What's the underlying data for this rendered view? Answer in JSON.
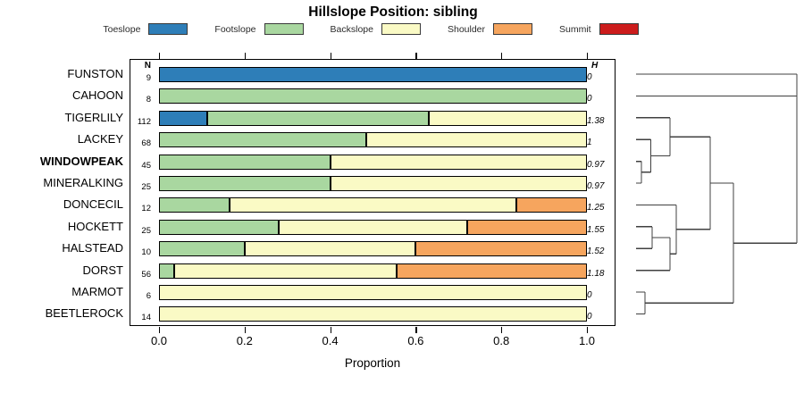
{
  "chart_data": {
    "type": "bar",
    "stacked": true,
    "orientation": "horizontal",
    "title": "Hillslope Position: sibling",
    "xlabel": "Proportion",
    "xlim": [
      0,
      1
    ],
    "x_ticks": [
      0,
      0.2,
      0.4,
      0.6,
      0.8,
      1.0
    ],
    "x_tick_labels": [
      "0.0",
      "0.2",
      "0.4",
      "0.6",
      "0.8",
      "1.0"
    ],
    "legend_position": "top",
    "categories": [
      "Toeslope",
      "Footslope",
      "Backslope",
      "Shoulder",
      "Summit"
    ],
    "colors": {
      "Toeslope": "#2E7EB8",
      "Footslope": "#A9D7A0",
      "Backslope": "#FAFAC5",
      "Shoulder": "#F6A55E",
      "Summit": "#CC1C1C"
    },
    "columns": {
      "n_header": "N",
      "h_header": "H"
    },
    "rows": [
      {
        "label": "FUNSTON",
        "n": "9",
        "h": "0",
        "bold": false,
        "segments": [
          {
            "cat": "Toeslope",
            "value": 1.0
          }
        ]
      },
      {
        "label": "CAHOON",
        "n": "8",
        "h": "0",
        "bold": false,
        "segments": [
          {
            "cat": "Footslope",
            "value": 1.0
          }
        ]
      },
      {
        "label": "TIGERLILY",
        "n": "112",
        "h": "1.38",
        "bold": false,
        "segments": [
          {
            "cat": "Toeslope",
            "value": 0.112
          },
          {
            "cat": "Footslope",
            "value": 0.518
          },
          {
            "cat": "Backslope",
            "value": 0.37
          }
        ]
      },
      {
        "label": "LACKEY",
        "n": "68",
        "h": "1",
        "bold": false,
        "segments": [
          {
            "cat": "Footslope",
            "value": 0.485
          },
          {
            "cat": "Backslope",
            "value": 0.515
          }
        ]
      },
      {
        "label": "WINDOWPEAK",
        "n": "45",
        "h": "0.97",
        "bold": true,
        "segments": [
          {
            "cat": "Footslope",
            "value": 0.4
          },
          {
            "cat": "Backslope",
            "value": 0.6
          }
        ]
      },
      {
        "label": "MINERALKING",
        "n": "25",
        "h": "0.97",
        "bold": false,
        "segments": [
          {
            "cat": "Footslope",
            "value": 0.4
          },
          {
            "cat": "Backslope",
            "value": 0.6
          }
        ]
      },
      {
        "label": "DONCECIL",
        "n": "12",
        "h": "1.25",
        "bold": false,
        "segments": [
          {
            "cat": "Footslope",
            "value": 0.165
          },
          {
            "cat": "Backslope",
            "value": 0.67
          },
          {
            "cat": "Shoulder",
            "value": 0.165
          }
        ]
      },
      {
        "label": "HOCKETT",
        "n": "25",
        "h": "1.55",
        "bold": false,
        "segments": [
          {
            "cat": "Footslope",
            "value": 0.28
          },
          {
            "cat": "Backslope",
            "value": 0.44
          },
          {
            "cat": "Shoulder",
            "value": 0.28
          }
        ]
      },
      {
        "label": "HALSTEAD",
        "n": "10",
        "h": "1.52",
        "bold": false,
        "segments": [
          {
            "cat": "Footslope",
            "value": 0.2
          },
          {
            "cat": "Backslope",
            "value": 0.4
          },
          {
            "cat": "Shoulder",
            "value": 0.4
          }
        ]
      },
      {
        "label": "DORST",
        "n": "56",
        "h": "1.18",
        "bold": false,
        "segments": [
          {
            "cat": "Footslope",
            "value": 0.035
          },
          {
            "cat": "Backslope",
            "value": 0.52
          },
          {
            "cat": "Shoulder",
            "value": 0.445
          }
        ]
      },
      {
        "label": "MARMOT",
        "n": "6",
        "h": "0",
        "bold": false,
        "segments": [
          {
            "cat": "Backslope",
            "value": 1.0
          }
        ]
      },
      {
        "label": "BEETLEROCK",
        "n": "14",
        "h": "0",
        "bold": false,
        "segments": [
          {
            "cat": "Backslope",
            "value": 1.0
          }
        ]
      }
    ],
    "dendrogram": {
      "line_color": "#404040",
      "segments": [
        [
          22,
          28,
          202,
          28
        ],
        [
          22,
          52.4,
          202,
          52.4
        ],
        [
          22,
          76.8,
          60,
          76.8
        ],
        [
          22,
          101.2,
          38.5,
          101.2
        ],
        [
          22,
          125.6,
          28,
          125.6
        ],
        [
          22,
          150,
          28,
          150
        ],
        [
          22,
          174.4,
          67,
          174.4
        ],
        [
          22,
          198.8,
          40,
          198.8
        ],
        [
          22,
          223.2,
          40,
          223.2
        ],
        [
          22,
          247.6,
          60,
          247.6
        ],
        [
          22,
          272,
          32,
          272
        ],
        [
          22,
          296.4,
          32,
          296.4
        ],
        [
          28,
          125.6,
          28,
          150
        ],
        [
          28,
          137.8,
          38.5,
          137.8
        ],
        [
          38.5,
          101.2,
          38.5,
          137.8
        ],
        [
          38.5,
          119.5,
          60,
          119.5
        ],
        [
          60,
          76.8,
          60,
          119.5
        ],
        [
          60,
          98.1,
          105,
          98.1
        ],
        [
          40,
          198.8,
          40,
          223.2
        ],
        [
          40,
          211,
          60,
          211
        ],
        [
          60,
          211,
          60,
          247.6
        ],
        [
          60,
          229.3,
          67,
          229.3
        ],
        [
          67,
          174.4,
          67,
          229.3
        ],
        [
          67,
          201.8,
          105,
          201.8
        ],
        [
          105,
          98.1,
          105,
          201.8
        ],
        [
          105,
          150,
          131,
          150
        ],
        [
          32,
          272,
          32,
          296.4
        ],
        [
          32,
          284.2,
          131,
          284.2
        ],
        [
          131,
          150,
          131,
          284.2
        ],
        [
          131,
          217.1,
          202,
          217.1
        ],
        [
          202,
          28,
          202,
          217.1
        ]
      ]
    }
  }
}
